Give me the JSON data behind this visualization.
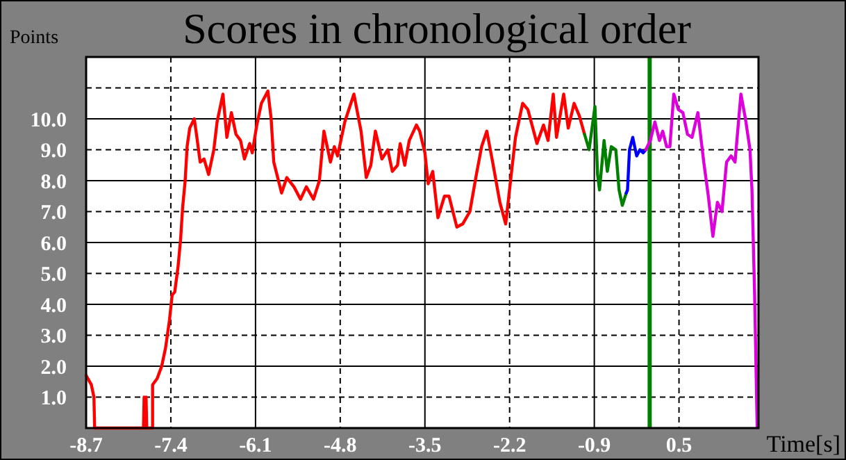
{
  "chart_data": {
    "type": "line",
    "title": "Scores in chronological order",
    "xlabel": "Time[s]",
    "ylabel": "Points",
    "xlim": [
      -8.65,
      1.67
    ],
    "ylim": [
      0,
      12
    ],
    "xticks": [
      {
        "value": -8.65,
        "label": "-8.7"
      },
      {
        "value": -7.35,
        "label": "-7.4"
      },
      {
        "value": -6.05,
        "label": "-6.1"
      },
      {
        "value": -4.75,
        "label": "-4.8"
      },
      {
        "value": -3.45,
        "label": "-3.5"
      },
      {
        "value": -2.15,
        "label": "-2.2"
      },
      {
        "value": -0.85,
        "label": "-0.9"
      },
      {
        "value": 0.45,
        "label": "0.5"
      }
    ],
    "yticks": [
      {
        "value": 1,
        "label": "1.0"
      },
      {
        "value": 2,
        "label": "2.0"
      },
      {
        "value": 3,
        "label": "3.0"
      },
      {
        "value": 4,
        "label": "4.0"
      },
      {
        "value": 5,
        "label": "5.0"
      },
      {
        "value": 6,
        "label": "6.0"
      },
      {
        "value": 7,
        "label": "7.0"
      },
      {
        "value": 8,
        "label": "8.0"
      },
      {
        "value": 9,
        "label": "9.0"
      },
      {
        "value": 10,
        "label": "10.0"
      },
      {
        "value": 11,
        "label": null
      }
    ],
    "grid": true,
    "ref_lines": [
      {
        "axis": "x",
        "value": 0,
        "color": "#008000"
      }
    ],
    "series": [
      {
        "color": "#ff0000",
        "x": [
          -8.65,
          -8.57,
          -8.53,
          -8.52,
          -7.77,
          -7.76,
          -7.75,
          -7.74,
          -7.73,
          -7.72,
          -7.63,
          -7.63,
          -7.56,
          -7.49,
          -7.43,
          -7.37,
          -7.33,
          -7.29,
          -7.24,
          -7.2,
          -7.17,
          -7.13,
          -7.1,
          -7.06,
          -6.99,
          -6.95,
          -6.9,
          -6.84,
          -6.77,
          -6.69,
          -6.64,
          -6.55,
          -6.49,
          -6.42,
          -6.35,
          -6.28,
          -6.22,
          -6.14,
          -6.1,
          -6.03,
          -5.96,
          -5.86,
          -5.81,
          -5.77,
          -5.71,
          -5.65,
          -5.57,
          -5.46,
          -5.36,
          -5.27,
          -5.16,
          -5.07,
          -5.0,
          -4.9,
          -4.84,
          -4.79,
          -4.68,
          -4.54,
          -4.43,
          -4.35,
          -4.28,
          -4.21,
          -4.11,
          -4.02,
          -3.95,
          -3.87,
          -3.83,
          -3.76,
          -3.69,
          -3.58,
          -3.53,
          -3.45,
          -3.4,
          -3.33,
          -3.25,
          -3.15,
          -3.08,
          -2.96,
          -2.87,
          -2.76,
          -2.66,
          -2.58,
          -2.5,
          -2.41,
          -2.3,
          -2.21,
          -2.13,
          -2.06,
          -1.95,
          -1.87,
          -1.73,
          -1.63,
          -1.56,
          -1.48,
          -1.43,
          -1.32,
          -1.25,
          -1.16,
          -1.08,
          -1.0
        ],
        "values": [
          1.7,
          1.4,
          1.0,
          0,
          0,
          1.0,
          0,
          0,
          1.0,
          0,
          0,
          1.4,
          1.6,
          2.0,
          2.6,
          3.5,
          4.3,
          4.4,
          5.2,
          6.1,
          7.1,
          8.0,
          9.1,
          9.7,
          10.0,
          9.4,
          8.6,
          8.7,
          8.2,
          9.0,
          9.9,
          10.8,
          9.4,
          10.2,
          9.5,
          9.3,
          8.7,
          9.2,
          8.9,
          9.8,
          10.5,
          10.9,
          10.0,
          8.6,
          8.1,
          7.6,
          8.1,
          7.8,
          7.4,
          7.8,
          7.4,
          8.0,
          9.6,
          8.6,
          9.1,
          8.8,
          9.9,
          10.8,
          9.6,
          8.1,
          8.5,
          9.6,
          8.7,
          9.0,
          8.3,
          8.5,
          9.2,
          8.5,
          9.3,
          9.8,
          9.6,
          8.9,
          7.9,
          8.3,
          6.8,
          7.5,
          7.5,
          6.5,
          6.6,
          7.0,
          8.2,
          9.1,
          9.6,
          8.6,
          7.3,
          6.6,
          8.1,
          9.4,
          10.5,
          10.3,
          9.2,
          9.8,
          9.3,
          10.8,
          9.4,
          10.8,
          9.7,
          10.5,
          10.1,
          9.5
        ]
      },
      {
        "color": "#008000",
        "x": [
          -1.0,
          -0.93,
          -0.84,
          -0.8,
          -0.77,
          -0.7,
          -0.65,
          -0.59,
          -0.52,
          -0.47,
          -0.42,
          -0.36
        ],
        "values": [
          9.5,
          9.0,
          10.4,
          8.2,
          7.7,
          9.3,
          8.3,
          9.1,
          9.0,
          7.7,
          7.2,
          7.6
        ]
      },
      {
        "color": "#0000ff",
        "x": [
          -0.36,
          -0.34,
          -0.31,
          -0.26,
          -0.2,
          -0.15,
          -0.1,
          -0.06
        ],
        "values": [
          7.6,
          7.7,
          9.0,
          9.4,
          8.8,
          9.0,
          8.9,
          9.0
        ]
      },
      {
        "color": "#dd00dd",
        "x": [
          -0.06,
          0.01,
          0.08,
          0.15,
          0.2,
          0.26,
          0.31,
          0.37,
          0.44,
          0.51,
          0.58,
          0.65,
          0.74,
          0.83,
          0.9,
          0.97,
          1.04,
          1.11,
          1.18,
          1.25,
          1.31,
          1.4,
          1.47,
          1.54,
          1.57,
          1.61,
          1.65
        ],
        "values": [
          9.0,
          9.3,
          9.9,
          9.3,
          9.6,
          9.1,
          9.1,
          10.8,
          10.3,
          10.2,
          9.5,
          9.4,
          10.2,
          8.6,
          7.5,
          6.2,
          7.3,
          7.0,
          8.6,
          8.8,
          8.6,
          10.8,
          10.0,
          9.0,
          7.7,
          4.4,
          0
        ]
      }
    ]
  }
}
